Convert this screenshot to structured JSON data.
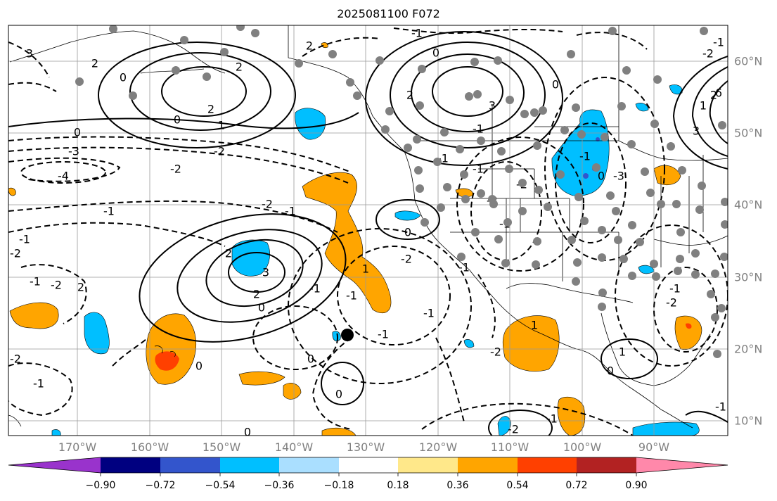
{
  "title": "2025081100 F072",
  "lon_labels": [
    "170°W",
    "160°W",
    "150°W",
    "140°W",
    "130°W",
    "120°W",
    "110°W",
    "100°W",
    "90°W"
  ],
  "lat_labels": [
    "60°N",
    "50°N",
    "40°N",
    "30°N",
    "20°N",
    "10°N"
  ],
  "contour_labels": [
    "3",
    "2",
    "0",
    "2",
    "0",
    "2",
    "1",
    "0",
    "-3",
    "-2",
    "-4",
    "-2",
    "-1",
    "0",
    "-1",
    "-2",
    "2",
    "3",
    "2",
    "0",
    "-1",
    "-2",
    "2",
    "-1",
    "0",
    "0",
    "-2",
    "1",
    "-1",
    "-2",
    "0",
    "0",
    "-1",
    "2",
    "3",
    "2",
    "0",
    "-1",
    "-1",
    "-1",
    "-2",
    "-2",
    "-1",
    "0",
    "-1",
    "0",
    "-3",
    "-2",
    "-1",
    "2",
    "1",
    "6",
    "3",
    "-1",
    "1",
    "-1",
    "-2",
    "-1",
    "1",
    "0",
    "-2",
    "-1",
    "-2",
    "-1",
    "-2",
    "-1",
    "-1",
    "-1"
  ],
  "colorbar": {
    "colors": [
      "#9933cc",
      "#000080",
      "#3355cc",
      "#00bfff",
      "#aadfff",
      "#ffffff",
      "#ffe88a",
      "#ffa500",
      "#ff4000",
      "#b22222",
      "#ff88aa"
    ],
    "ticks": [
      "−0.90",
      "−0.72",
      "−0.54",
      "−0.36",
      "−0.18",
      "0.18",
      "0.36",
      "0.54",
      "0.72",
      "0.90"
    ]
  },
  "colors": {
    "land_dots": "#808080",
    "positive_anomaly": "#ffa500",
    "negative_anomaly": "#00bfff",
    "strong_positive": "#ff4000"
  }
}
